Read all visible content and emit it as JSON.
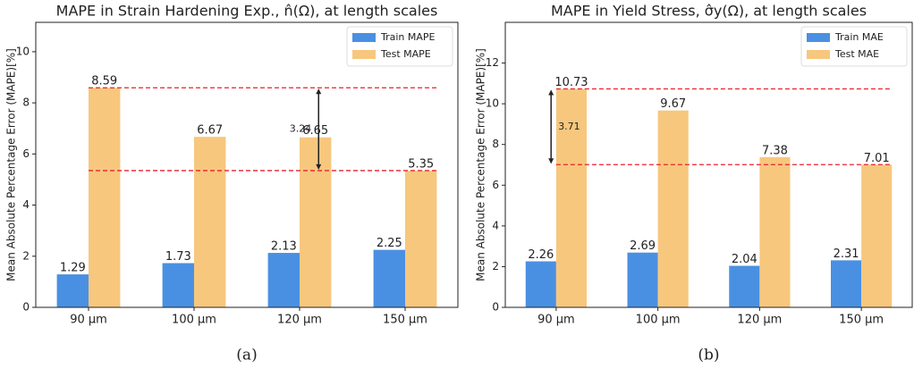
{
  "chart_data": [
    {
      "type": "bar",
      "title": "MAPE in Strain Hardening Exp., n̂(Ω), at length scales",
      "ylabel": "Mean Absolute Percentage Error (MAPE)[%]",
      "categories": [
        "90 µm",
        "100 µm",
        "120 µm",
        "150 µm"
      ],
      "series": [
        {
          "name": "Train MAPE",
          "color": "#4a90e2",
          "values": [
            1.29,
            1.73,
            2.13,
            2.25
          ]
        },
        {
          "name": "Test MAPE",
          "color": "#f7c77e",
          "values": [
            8.59,
            6.67,
            6.65,
            5.35
          ]
        }
      ],
      "ylim": [
        0,
        11.15
      ],
      "yticks": [
        0,
        2,
        4,
        6,
        8,
        10
      ],
      "legend": "upper right",
      "annotation": "3.24",
      "reference_line_color": "#e8212b",
      "caption": "(a)"
    },
    {
      "type": "bar",
      "title": "MAPE in Yield Stress, σ̂y(Ω), at length scales",
      "ylabel": "Mean Absolute Percentage Error (MAPE)[%]",
      "categories": [
        "90 µm",
        "100 µm",
        "120 µm",
        "150 µm"
      ],
      "series": [
        {
          "name": "Train MAE",
          "color": "#4a90e2",
          "values": [
            2.26,
            2.69,
            2.04,
            2.31
          ]
        },
        {
          "name": "Test MAE",
          "color": "#f7c77e",
          "values": [
            10.73,
            9.67,
            7.38,
            7.01
          ]
        }
      ],
      "ylim": [
        0,
        14
      ],
      "yticks": [
        0,
        2,
        4,
        6,
        8,
        10,
        12
      ],
      "legend": "upper right",
      "annotation": "3.71",
      "reference_line_color": "#e8212b",
      "caption": "(b)"
    }
  ]
}
